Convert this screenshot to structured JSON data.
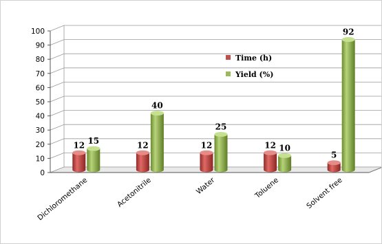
{
  "chart_data": {
    "type": "bar",
    "categories": [
      "Dichloromethane",
      "Acetonitrile",
      "Water",
      "Toluene",
      "Solvent free"
    ],
    "series": [
      {
        "name": "Time (h)",
        "values": [
          12,
          12,
          12,
          12,
          5
        ],
        "color": "#c0504d"
      },
      {
        "name": "Yield (%)",
        "values": [
          15,
          40,
          25,
          10,
          92
        ],
        "color": "#9bbb59"
      }
    ],
    "y_ticks": [
      "0",
      "10",
      "20",
      "30",
      "40",
      "50",
      "60",
      "70",
      "80",
      "90",
      "100"
    ],
    "ylim": [
      0,
      100
    ],
    "grid": true,
    "legend_position": "center",
    "style": "3d-cylinder"
  }
}
